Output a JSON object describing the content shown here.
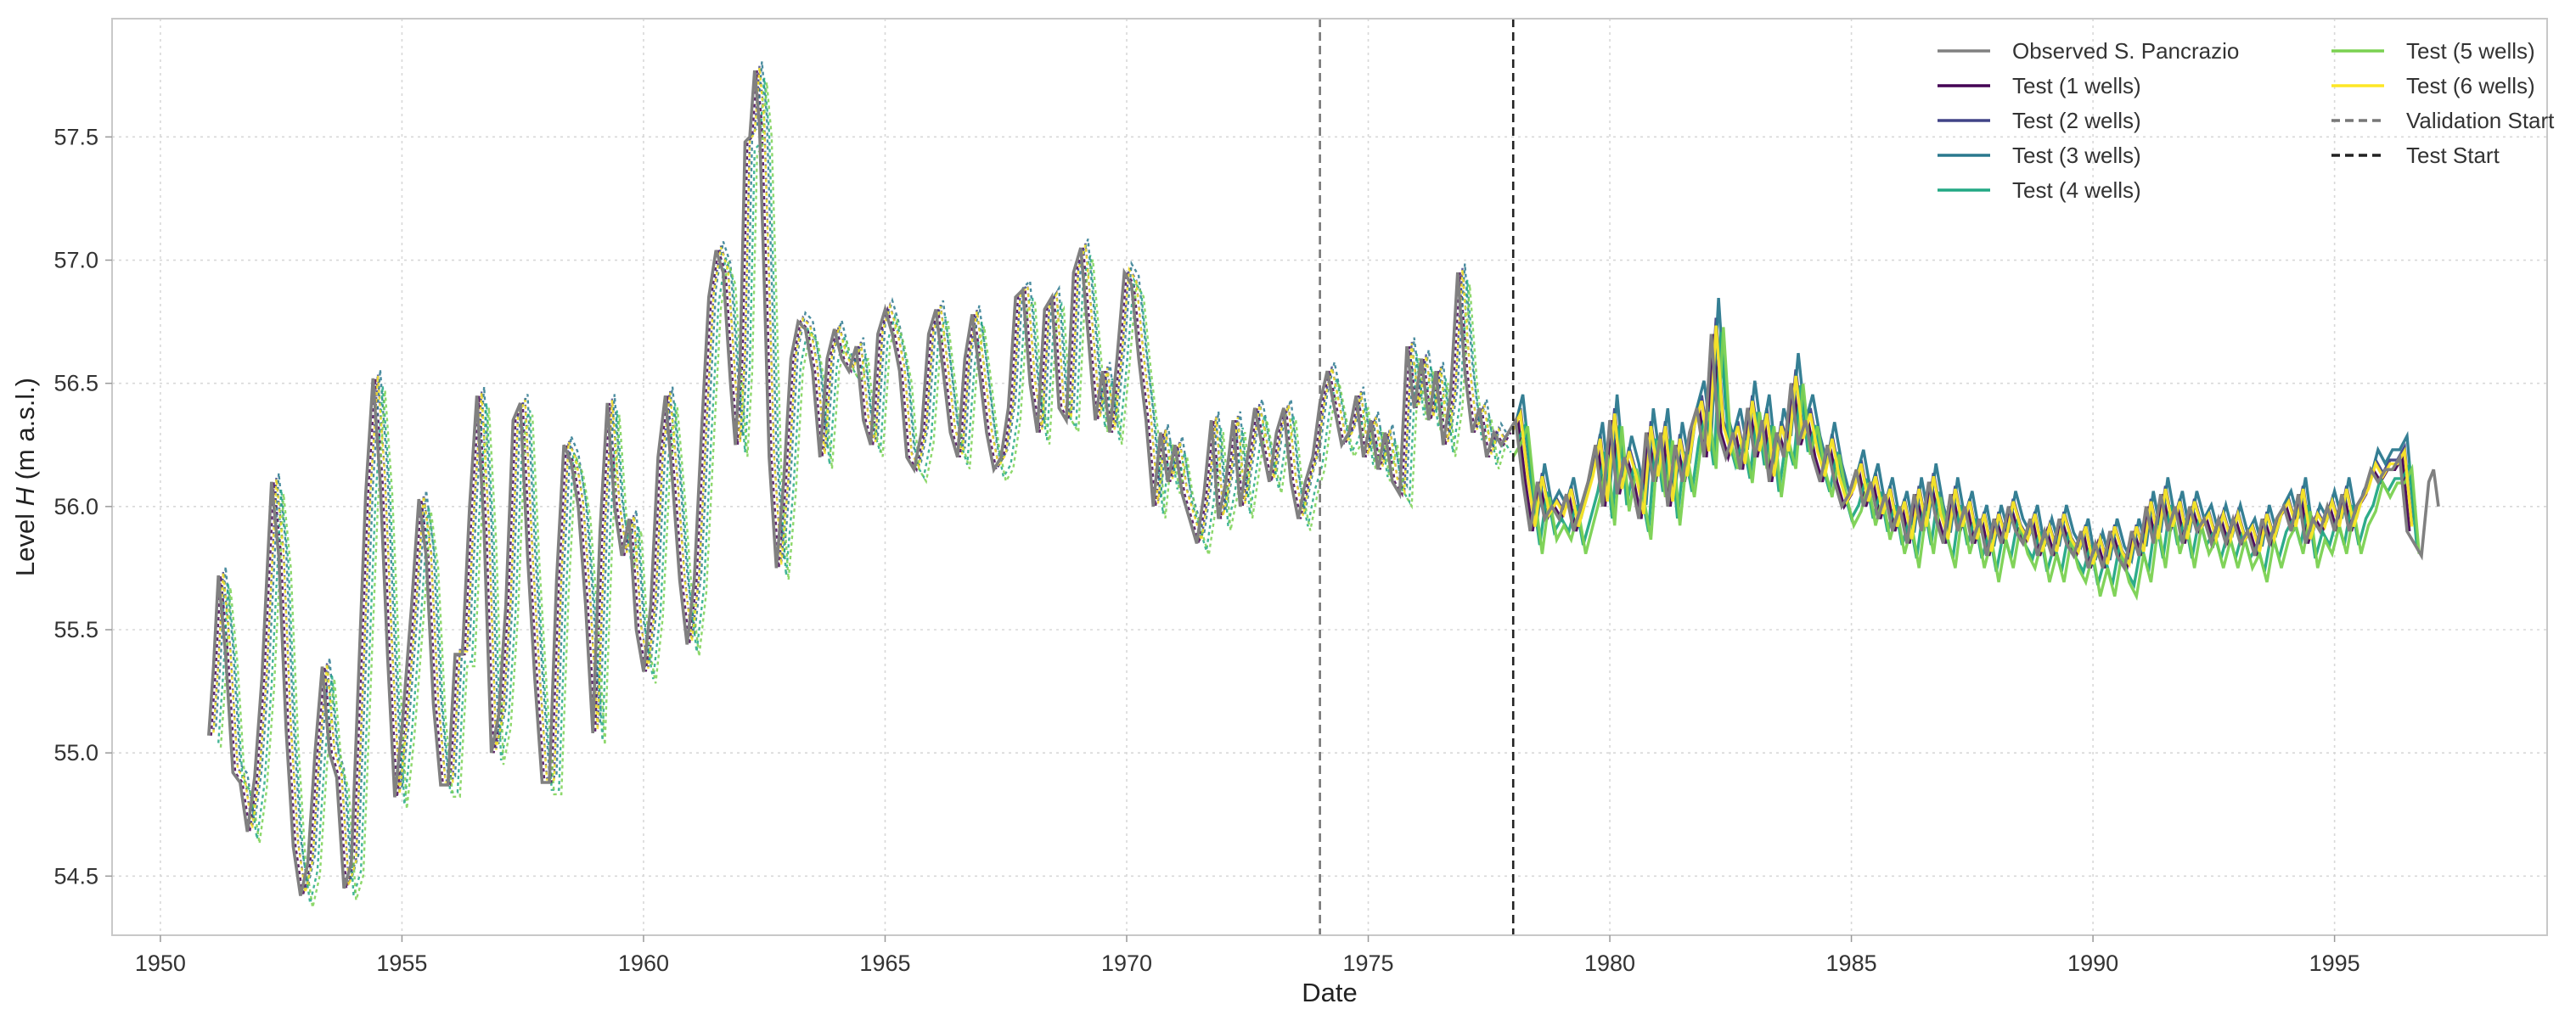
{
  "chart_data": {
    "type": "line",
    "title": "",
    "xlabel": "Date",
    "ylabel_main": "Level ",
    "ylabel_var": "H",
    "ylabel_unit": " (m a.s.l.)",
    "xlim": [
      1949.0,
      1999.4
    ],
    "ylim": [
      54.26,
      57.98
    ],
    "x_ticks": [
      1950,
      1955,
      1960,
      1965,
      1970,
      1975,
      1980,
      1985,
      1990,
      1995
    ],
    "y_ticks": [
      54.5,
      55.0,
      55.5,
      56.0,
      56.5,
      57.0,
      57.5
    ],
    "y_tick_labels": [
      "54.5",
      "55.0",
      "55.5",
      "56.0",
      "56.5",
      "57.0",
      "57.5"
    ],
    "grid": true,
    "legend_position": "top-right",
    "vlines": [
      {
        "name": "Validation Start",
        "x": 1974.0,
        "color": "#777777"
      },
      {
        "name": "Test Start",
        "x": 1978.0,
        "color": "#222222"
      }
    ],
    "observed": {
      "name": "Observed S. Pancrazio",
      "color": "#808080",
      "points": [
        [
          1951.0,
          55.07
        ],
        [
          1951.1,
          55.35
        ],
        [
          1951.2,
          55.72
        ],
        [
          1951.35,
          55.4
        ],
        [
          1951.5,
          54.92
        ],
        [
          1951.65,
          54.88
        ],
        [
          1951.8,
          54.68
        ],
        [
          1951.95,
          54.9
        ],
        [
          1952.1,
          55.3
        ],
        [
          1952.3,
          56.1
        ],
        [
          1952.45,
          55.8
        ],
        [
          1952.6,
          55.1
        ],
        [
          1952.75,
          54.62
        ],
        [
          1952.9,
          54.42
        ],
        [
          1953.05,
          54.55
        ],
        [
          1953.2,
          55.0
        ],
        [
          1953.35,
          55.35
        ],
        [
          1953.5,
          55.0
        ],
        [
          1953.65,
          54.9
        ],
        [
          1953.8,
          54.45
        ],
        [
          1953.95,
          54.55
        ],
        [
          1954.1,
          55.3
        ],
        [
          1954.25,
          56.05
        ],
        [
          1954.4,
          56.52
        ],
        [
          1954.55,
          56.1
        ],
        [
          1954.7,
          55.4
        ],
        [
          1954.85,
          54.82
        ],
        [
          1955.0,
          55.1
        ],
        [
          1955.2,
          55.6
        ],
        [
          1955.35,
          56.03
        ],
        [
          1955.5,
          55.8
        ],
        [
          1955.65,
          55.2
        ],
        [
          1955.8,
          54.87
        ],
        [
          1955.95,
          54.87
        ],
        [
          1956.1,
          55.4
        ],
        [
          1956.25,
          55.4
        ],
        [
          1956.4,
          56.0
        ],
        [
          1956.55,
          56.45
        ],
        [
          1956.7,
          55.9
        ],
        [
          1956.85,
          55.0
        ],
        [
          1957.0,
          55.15
        ],
        [
          1957.15,
          55.6
        ],
        [
          1957.3,
          56.35
        ],
        [
          1957.45,
          56.42
        ],
        [
          1957.6,
          55.8
        ],
        [
          1957.75,
          55.3
        ],
        [
          1957.9,
          54.88
        ],
        [
          1958.05,
          54.88
        ],
        [
          1958.2,
          55.7
        ],
        [
          1958.35,
          56.25
        ],
        [
          1958.5,
          56.18
        ],
        [
          1958.65,
          56.0
        ],
        [
          1958.8,
          55.6
        ],
        [
          1958.95,
          55.08
        ],
        [
          1959.1,
          55.9
        ],
        [
          1959.25,
          56.42
        ],
        [
          1959.4,
          56.0
        ],
        [
          1959.55,
          55.8
        ],
        [
          1959.7,
          55.95
        ],
        [
          1959.85,
          55.5
        ],
        [
          1960.0,
          55.33
        ],
        [
          1960.15,
          55.6
        ],
        [
          1960.3,
          56.2
        ],
        [
          1960.45,
          56.45
        ],
        [
          1960.6,
          56.1
        ],
        [
          1960.75,
          55.7
        ],
        [
          1960.9,
          55.44
        ],
        [
          1961.05,
          55.7
        ],
        [
          1961.2,
          56.3
        ],
        [
          1961.35,
          56.85
        ],
        [
          1961.5,
          57.04
        ],
        [
          1961.65,
          56.95
        ],
        [
          1961.8,
          56.5
        ],
        [
          1961.9,
          56.25
        ],
        [
          1962.0,
          56.6
        ],
        [
          1962.1,
          57.48
        ],
        [
          1962.2,
          57.5
        ],
        [
          1962.3,
          57.77
        ],
        [
          1962.4,
          57.55
        ],
        [
          1962.5,
          56.9
        ],
        [
          1962.6,
          56.2
        ],
        [
          1962.75,
          55.75
        ],
        [
          1962.9,
          56.1
        ],
        [
          1963.05,
          56.6
        ],
        [
          1963.2,
          56.75
        ],
        [
          1963.35,
          56.72
        ],
        [
          1963.5,
          56.55
        ],
        [
          1963.65,
          56.2
        ],
        [
          1963.8,
          56.6
        ],
        [
          1963.95,
          56.72
        ],
        [
          1964.1,
          56.6
        ],
        [
          1964.25,
          56.55
        ],
        [
          1964.4,
          56.65
        ],
        [
          1964.55,
          56.35
        ],
        [
          1964.7,
          56.25
        ],
        [
          1964.85,
          56.7
        ],
        [
          1965.0,
          56.8
        ],
        [
          1965.15,
          56.7
        ],
        [
          1965.3,
          56.55
        ],
        [
          1965.45,
          56.2
        ],
        [
          1965.6,
          56.15
        ],
        [
          1965.75,
          56.3
        ],
        [
          1965.9,
          56.7
        ],
        [
          1966.05,
          56.8
        ],
        [
          1966.2,
          56.55
        ],
        [
          1966.35,
          56.3
        ],
        [
          1966.5,
          56.2
        ],
        [
          1966.65,
          56.6
        ],
        [
          1966.8,
          56.78
        ],
        [
          1966.95,
          56.55
        ],
        [
          1967.1,
          56.3
        ],
        [
          1967.25,
          56.15
        ],
        [
          1967.4,
          56.2
        ],
        [
          1967.55,
          56.4
        ],
        [
          1967.7,
          56.85
        ],
        [
          1967.85,
          56.88
        ],
        [
          1968.0,
          56.5
        ],
        [
          1968.15,
          56.3
        ],
        [
          1968.3,
          56.8
        ],
        [
          1968.45,
          56.85
        ],
        [
          1968.6,
          56.4
        ],
        [
          1968.75,
          56.35
        ],
        [
          1968.9,
          56.95
        ],
        [
          1969.05,
          57.05
        ],
        [
          1969.2,
          56.7
        ],
        [
          1969.35,
          56.35
        ],
        [
          1969.5,
          56.55
        ],
        [
          1969.65,
          56.3
        ],
        [
          1969.8,
          56.6
        ],
        [
          1969.95,
          56.95
        ],
        [
          1970.1,
          56.9
        ],
        [
          1970.25,
          56.6
        ],
        [
          1970.4,
          56.35
        ],
        [
          1970.55,
          56.0
        ],
        [
          1970.7,
          56.3
        ],
        [
          1970.85,
          56.1
        ],
        [
          1971.0,
          56.25
        ],
        [
          1971.15,
          56.05
        ],
        [
          1971.3,
          55.95
        ],
        [
          1971.45,
          55.85
        ],
        [
          1971.6,
          56.05
        ],
        [
          1971.75,
          56.35
        ],
        [
          1971.9,
          55.95
        ],
        [
          1972.05,
          56.1
        ],
        [
          1972.2,
          56.35
        ],
        [
          1972.35,
          56.0
        ],
        [
          1972.5,
          56.2
        ],
        [
          1972.65,
          56.4
        ],
        [
          1972.8,
          56.25
        ],
        [
          1972.95,
          56.1
        ],
        [
          1973.1,
          56.3
        ],
        [
          1973.25,
          56.4
        ],
        [
          1973.4,
          56.1
        ],
        [
          1973.55,
          55.95
        ],
        [
          1973.7,
          56.1
        ],
        [
          1973.85,
          56.2
        ],
        [
          1974.0,
          56.42
        ],
        [
          1974.15,
          56.55
        ],
        [
          1974.3,
          56.4
        ],
        [
          1974.45,
          56.25
        ],
        [
          1974.6,
          56.3
        ],
        [
          1974.75,
          56.45
        ],
        [
          1974.9,
          56.2
        ],
        [
          1975.05,
          56.35
        ],
        [
          1975.2,
          56.15
        ],
        [
          1975.35,
          56.3
        ],
        [
          1975.5,
          56.1
        ],
        [
          1975.65,
          56.05
        ],
        [
          1975.8,
          56.65
        ],
        [
          1975.95,
          56.4
        ],
        [
          1976.1,
          56.6
        ],
        [
          1976.25,
          56.35
        ],
        [
          1976.4,
          56.55
        ],
        [
          1976.55,
          56.25
        ],
        [
          1976.7,
          56.45
        ],
        [
          1976.85,
          56.95
        ],
        [
          1977.0,
          56.55
        ],
        [
          1977.15,
          56.3
        ],
        [
          1977.3,
          56.4
        ],
        [
          1977.45,
          56.2
        ],
        [
          1977.6,
          56.3
        ],
        [
          1977.75,
          56.25
        ],
        [
          1977.9,
          56.3
        ],
        [
          1978.05,
          56.35
        ],
        [
          1978.2,
          56.1
        ],
        [
          1978.35,
          55.9
        ],
        [
          1978.5,
          56.1
        ],
        [
          1978.65,
          55.95
        ],
        [
          1978.8,
          56.0
        ],
        [
          1978.95,
          55.95
        ],
        [
          1979.1,
          56.05
        ],
        [
          1979.25,
          55.9
        ],
        [
          1979.4,
          56.0
        ],
        [
          1979.55,
          56.1
        ],
        [
          1979.7,
          56.25
        ],
        [
          1979.85,
          56.0
        ],
        [
          1980.0,
          56.35
        ],
        [
          1980.15,
          56.05
        ],
        [
          1980.3,
          56.2
        ],
        [
          1980.45,
          56.1
        ],
        [
          1980.6,
          55.95
        ],
        [
          1980.75,
          56.3
        ],
        [
          1980.9,
          56.1
        ],
        [
          1981.05,
          56.3
        ],
        [
          1981.2,
          56.0
        ],
        [
          1981.35,
          56.25
        ],
        [
          1981.5,
          56.1
        ],
        [
          1981.65,
          56.3
        ],
        [
          1981.8,
          56.4
        ],
        [
          1981.95,
          56.2
        ],
        [
          1982.1,
          56.7
        ],
        [
          1982.25,
          56.3
        ],
        [
          1982.4,
          56.2
        ],
        [
          1982.55,
          56.3
        ],
        [
          1982.7,
          56.15
        ],
        [
          1982.85,
          56.4
        ],
        [
          1983.0,
          56.2
        ],
        [
          1983.15,
          56.35
        ],
        [
          1983.3,
          56.1
        ],
        [
          1983.45,
          56.3
        ],
        [
          1983.6,
          56.2
        ],
        [
          1983.75,
          56.5
        ],
        [
          1983.9,
          56.25
        ],
        [
          1984.05,
          56.35
        ],
        [
          1984.2,
          56.2
        ],
        [
          1984.35,
          56.1
        ],
        [
          1984.5,
          56.25
        ],
        [
          1984.65,
          56.1
        ],
        [
          1984.8,
          56.0
        ],
        [
          1984.95,
          56.05
        ],
        [
          1985.1,
          56.15
        ],
        [
          1985.25,
          56.0
        ],
        [
          1985.4,
          56.1
        ],
        [
          1985.55,
          55.95
        ],
        [
          1985.7,
          56.05
        ],
        [
          1985.85,
          55.9
        ],
        [
          1986.0,
          56.0
        ],
        [
          1986.15,
          55.85
        ],
        [
          1986.3,
          56.05
        ],
        [
          1986.45,
          55.9
        ],
        [
          1986.6,
          56.1
        ],
        [
          1986.75,
          55.95
        ],
        [
          1986.9,
          55.85
        ],
        [
          1987.05,
          56.05
        ],
        [
          1987.2,
          55.9
        ],
        [
          1987.35,
          56.0
        ],
        [
          1987.5,
          55.85
        ],
        [
          1987.65,
          55.95
        ],
        [
          1987.8,
          55.8
        ],
        [
          1987.95,
          55.95
        ],
        [
          1988.1,
          55.85
        ],
        [
          1988.25,
          56.0
        ],
        [
          1988.4,
          55.9
        ],
        [
          1988.55,
          55.85
        ],
        [
          1988.7,
          55.95
        ],
        [
          1988.85,
          55.8
        ],
        [
          1989.0,
          55.9
        ],
        [
          1989.15,
          55.8
        ],
        [
          1989.3,
          55.95
        ],
        [
          1989.45,
          55.85
        ],
        [
          1989.6,
          55.8
        ],
        [
          1989.75,
          55.9
        ],
        [
          1989.9,
          55.75
        ],
        [
          1990.05,
          55.85
        ],
        [
          1990.2,
          55.75
        ],
        [
          1990.35,
          55.9
        ],
        [
          1990.5,
          55.8
        ],
        [
          1990.65,
          55.75
        ],
        [
          1990.8,
          55.9
        ],
        [
          1990.95,
          55.8
        ],
        [
          1991.1,
          56.0
        ],
        [
          1991.25,
          55.85
        ],
        [
          1991.4,
          56.05
        ],
        [
          1991.55,
          55.9
        ],
        [
          1991.7,
          56.0
        ],
        [
          1991.85,
          55.85
        ],
        [
          1992.0,
          56.0
        ],
        [
          1992.15,
          55.9
        ],
        [
          1992.3,
          55.95
        ],
        [
          1992.45,
          55.85
        ],
        [
          1992.6,
          55.95
        ],
        [
          1992.75,
          55.85
        ],
        [
          1992.9,
          55.95
        ],
        [
          1993.05,
          55.85
        ],
        [
          1993.2,
          55.9
        ],
        [
          1993.35,
          55.8
        ],
        [
          1993.5,
          55.95
        ],
        [
          1993.65,
          55.85
        ],
        [
          1993.8,
          55.95
        ],
        [
          1993.95,
          56.0
        ],
        [
          1994.1,
          55.9
        ],
        [
          1994.25,
          56.05
        ],
        [
          1994.4,
          55.85
        ],
        [
          1994.55,
          55.95
        ],
        [
          1994.7,
          55.9
        ],
        [
          1994.85,
          56.0
        ],
        [
          1995.0,
          55.9
        ],
        [
          1995.15,
          56.05
        ],
        [
          1995.3,
          55.9
        ],
        [
          1995.45,
          56.0
        ],
        [
          1995.6,
          56.05
        ],
        [
          1995.75,
          56.15
        ],
        [
          1995.9,
          56.1
        ],
        [
          1996.05,
          56.15
        ],
        [
          1996.2,
          56.15
        ],
        [
          1996.35,
          56.2
        ],
        [
          1996.5,
          55.9
        ],
        [
          1996.65,
          55.85
        ],
        [
          1996.8,
          55.8
        ],
        [
          1996.95,
          56.1
        ],
        [
          1997.05,
          56.15
        ],
        [
          1997.15,
          56.0
        ]
      ]
    },
    "models": [
      {
        "name": "Test (1 wells)",
        "color": "#440154",
        "offset": 0.0,
        "lag": 0.05,
        "amp": 1.0
      },
      {
        "name": "Test (2 wells)",
        "color": "#414487",
        "offset": 0.03,
        "lag": 0.1,
        "amp": 1.05
      },
      {
        "name": "Test (3 wells)",
        "color": "#2a788e",
        "offset": 0.06,
        "lag": 0.15,
        "amp": 1.12
      },
      {
        "name": "Test (4 wells)",
        "color": "#22a884",
        "offset": -0.05,
        "lag": 0.2,
        "amp": 1.08
      },
      {
        "name": "Test (5 wells)",
        "color": "#7ad151",
        "offset": -0.08,
        "lag": 0.25,
        "amp": 1.15
      },
      {
        "name": "Test (6 wells)",
        "color": "#fde725",
        "offset": 0.02,
        "lag": 0.1,
        "amp": 1.02
      }
    ],
    "legend_entries": [
      "Observed S. Pancrazio",
      "Test (1 wells)",
      "Test (2 wells)",
      "Test (3 wells)",
      "Test (4 wells)",
      "Test (5 wells)",
      "Test (6 wells)",
      "Validation Start",
      "Test Start"
    ]
  }
}
